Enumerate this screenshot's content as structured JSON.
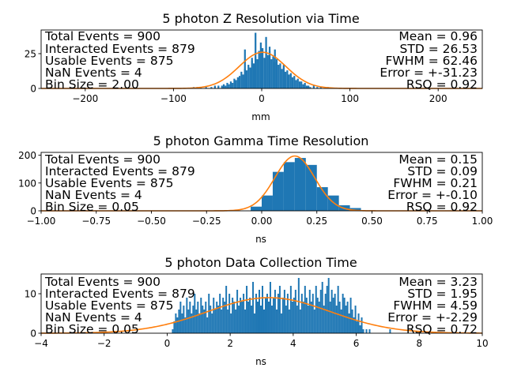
{
  "colors": {
    "bar": "#1f77b4",
    "fit": "#ff7f0e",
    "axis": "#000000",
    "background": "#ffffff"
  },
  "chart_data": [
    {
      "type": "bar",
      "title": "5 photon Z Resolution via Time",
      "xlabel": "mm",
      "ylabel": "",
      "xlim": [
        -250,
        250
      ],
      "ylim": [
        0,
        42
      ],
      "xticks": [
        -200,
        -100,
        0,
        100,
        200
      ],
      "xtick_labels": [
        "−200",
        "−100",
        "0",
        "100",
        "200"
      ],
      "yticks": [
        0,
        25
      ],
      "ytick_labels": [
        "0",
        "25"
      ],
      "bin_width": 2,
      "series": [
        {
          "kind": "histogram",
          "bins": [
            [
              -78,
              1
            ],
            [
              -74,
              1
            ],
            [
              -70,
              1
            ],
            [
              -64,
              1
            ],
            [
              -58,
              1
            ],
            [
              -54,
              2
            ],
            [
              -50,
              2
            ],
            [
              -46,
              2
            ],
            [
              -44,
              3
            ],
            [
              -42,
              2
            ],
            [
              -40,
              4
            ],
            [
              -38,
              3
            ],
            [
              -36,
              5
            ],
            [
              -34,
              4
            ],
            [
              -32,
              7
            ],
            [
              -30,
              6
            ],
            [
              -28,
              8
            ],
            [
              -26,
              9
            ],
            [
              -24,
              12
            ],
            [
              -22,
              10
            ],
            [
              -20,
              14
            ],
            [
              -18,
              13
            ],
            [
              -16,
              17
            ],
            [
              -14,
              15
            ],
            [
              -12,
              20
            ],
            [
              -10,
              18
            ],
            [
              -8,
              23
            ],
            [
              -6,
              21
            ],
            [
              -4,
              27
            ],
            [
              -2,
              25
            ],
            [
              0,
              29
            ],
            [
              2,
              22
            ],
            [
              4,
              26
            ],
            [
              6,
              24
            ],
            [
              8,
              27
            ],
            [
              10,
              21
            ],
            [
              12,
              23
            ],
            [
              14,
              19
            ],
            [
              16,
              21
            ],
            [
              18,
              17
            ],
            [
              20,
              18
            ],
            [
              22,
              14
            ],
            [
              24,
              16
            ],
            [
              26,
              12
            ],
            [
              28,
              13
            ],
            [
              30,
              10
            ],
            [
              32,
              11
            ],
            [
              34,
              8
            ],
            [
              36,
              9
            ],
            [
              38,
              6
            ],
            [
              40,
              7
            ],
            [
              42,
              5
            ],
            [
              44,
              5
            ],
            [
              46,
              3
            ],
            [
              48,
              4
            ],
            [
              50,
              2
            ],
            [
              52,
              2
            ],
            [
              54,
              1
            ],
            [
              58,
              2
            ],
            [
              62,
              1
            ],
            [
              66,
              1
            ],
            [
              74,
              1
            ],
            [
              -12,
              22
            ],
            [
              -8,
              40
            ],
            [
              4,
              37
            ],
            [
              -2,
              33
            ],
            [
              8,
              30
            ],
            [
              14,
              28
            ],
            [
              -20,
              28
            ],
            [
              24,
              17
            ]
          ]
        },
        {
          "kind": "gaussian_fit",
          "mean": 0.96,
          "std": 26.53,
          "amplitude": 26
        }
      ],
      "stats_left": [
        "Total Events = 900",
        "Interacted Events = 879",
        "Usable Events = 875",
        "NaN Events = 4",
        "Bin Size = 2.00"
      ],
      "stats_right": [
        "Mean = 0.96",
        "STD = 26.53",
        "FWHM = 62.46",
        "Error = +-31.23",
        "RSQ = 0.92"
      ]
    },
    {
      "type": "bar",
      "title": "5 photon Gamma Time Resolution",
      "xlabel": "ns",
      "ylabel": "",
      "xlim": [
        -1.0,
        1.0
      ],
      "ylim": [
        0,
        210
      ],
      "xticks": [
        -1.0,
        -0.75,
        -0.5,
        -0.25,
        0.0,
        0.25,
        0.5,
        0.75,
        1.0
      ],
      "xtick_labels": [
        "−1.00",
        "−0.75",
        "−0.50",
        "−0.25",
        "0.00",
        "0.25",
        "0.50",
        "0.75",
        "1.00"
      ],
      "yticks": [
        0,
        100,
        200
      ],
      "ytick_labels": [
        "0",
        "100",
        "200"
      ],
      "bin_width": 0.05,
      "series": [
        {
          "kind": "histogram",
          "bins": [
            [
              -0.05,
              15
            ],
            [
              0.0,
              55
            ],
            [
              0.05,
              140
            ],
            [
              0.1,
              175
            ],
            [
              0.15,
              190
            ],
            [
              0.2,
              165
            ],
            [
              0.25,
              85
            ],
            [
              0.3,
              55
            ],
            [
              0.35,
              20
            ],
            [
              0.4,
              10
            ]
          ]
        },
        {
          "kind": "gaussian_fit",
          "mean": 0.15,
          "std": 0.09,
          "amplitude": 197
        }
      ],
      "stats_left": [
        "Total Events = 900",
        "Interacted Events = 879",
        "Usable Events = 875",
        "NaN Events = 4",
        "Bin Size = 0.05"
      ],
      "stats_right": [
        "Mean = 0.15",
        "STD = 0.09",
        "FWHM = 0.21",
        "Error = +-0.10",
        "RSQ = 0.92"
      ]
    },
    {
      "type": "bar",
      "title": "5 photon Data Collection Time",
      "xlabel": "ns",
      "ylabel": "",
      "xlim": [
        -4,
        10
      ],
      "ylim": [
        0,
        15
      ],
      "xticks": [
        -4,
        -2,
        0,
        2,
        4,
        6,
        8,
        10
      ],
      "xtick_labels": [
        "−4",
        "−2",
        "0",
        "2",
        "4",
        "6",
        "8",
        "10"
      ],
      "yticks": [
        0,
        10
      ],
      "ytick_labels": [
        "0",
        "10"
      ],
      "bin_width": 0.05,
      "series": [
        {
          "kind": "histogram",
          "bins": [
            [
              0.15,
              1
            ],
            [
              0.2,
              3
            ],
            [
              0.25,
              5
            ],
            [
              0.3,
              4
            ],
            [
              0.35,
              6
            ],
            [
              0.4,
              8
            ],
            [
              0.45,
              5
            ],
            [
              0.5,
              7
            ],
            [
              0.55,
              4
            ],
            [
              0.6,
              9
            ],
            [
              0.65,
              6
            ],
            [
              0.7,
              8
            ],
            [
              0.75,
              5
            ],
            [
              0.8,
              7
            ],
            [
              0.85,
              10
            ],
            [
              0.9,
              6
            ],
            [
              0.95,
              8
            ],
            [
              1.0,
              5
            ],
            [
              1.05,
              9
            ],
            [
              1.1,
              7
            ],
            [
              1.15,
              6
            ],
            [
              1.2,
              8
            ],
            [
              1.25,
              4
            ],
            [
              1.3,
              10
            ],
            [
              1.35,
              7
            ],
            [
              1.4,
              5
            ],
            [
              1.45,
              9
            ],
            [
              1.5,
              6
            ],
            [
              1.55,
              8
            ],
            [
              1.6,
              7
            ],
            [
              1.65,
              10
            ],
            [
              1.7,
              6
            ],
            [
              1.75,
              9
            ],
            [
              1.8,
              8
            ],
            [
              1.85,
              12
            ],
            [
              1.9,
              6
            ],
            [
              1.95,
              10
            ],
            [
              2.0,
              5
            ],
            [
              2.05,
              9
            ],
            [
              2.1,
              8
            ],
            [
              2.15,
              6
            ],
            [
              2.2,
              11
            ],
            [
              2.25,
              7
            ],
            [
              2.3,
              9
            ],
            [
              2.35,
              8
            ],
            [
              2.4,
              10
            ],
            [
              2.45,
              6
            ],
            [
              2.5,
              12
            ],
            [
              2.55,
              8
            ],
            [
              2.6,
              9
            ],
            [
              2.65,
              7
            ],
            [
              2.7,
              13
            ],
            [
              2.75,
              5
            ],
            [
              2.8,
              10
            ],
            [
              2.85,
              8
            ],
            [
              2.9,
              11
            ],
            [
              2.95,
              7
            ],
            [
              3.0,
              12
            ],
            [
              3.05,
              6
            ],
            [
              3.1,
              9
            ],
            [
              3.15,
              10
            ],
            [
              3.2,
              8
            ],
            [
              3.25,
              13
            ],
            [
              3.3,
              7
            ],
            [
              3.35,
              9
            ],
            [
              3.4,
              11
            ],
            [
              3.45,
              6
            ],
            [
              3.5,
              10
            ],
            [
              3.55,
              12
            ],
            [
              3.6,
              5
            ],
            [
              3.65,
              9
            ],
            [
              3.7,
              11
            ],
            [
              3.75,
              7
            ],
            [
              3.8,
              10
            ],
            [
              3.85,
              6
            ],
            [
              3.9,
              12
            ],
            [
              3.95,
              8
            ],
            [
              4.0,
              9
            ],
            [
              4.05,
              11
            ],
            [
              4.1,
              7
            ],
            [
              4.15,
              14
            ],
            [
              4.2,
              6
            ],
            [
              4.25,
              10
            ],
            [
              4.3,
              8
            ],
            [
              4.35,
              12
            ],
            [
              4.4,
              9
            ],
            [
              4.45,
              7
            ],
            [
              4.5,
              11
            ],
            [
              4.55,
              8
            ],
            [
              4.6,
              10
            ],
            [
              4.65,
              6
            ],
            [
              4.7,
              12
            ],
            [
              4.75,
              9
            ],
            [
              4.8,
              8
            ],
            [
              4.85,
              11
            ],
            [
              4.9,
              13
            ],
            [
              4.95,
              7
            ],
            [
              5.0,
              10
            ],
            [
              5.05,
              12
            ],
            [
              5.1,
              14
            ],
            [
              5.15,
              8
            ],
            [
              5.2,
              11
            ],
            [
              5.25,
              9
            ],
            [
              5.3,
              10
            ],
            [
              5.35,
              7
            ],
            [
              5.4,
              12
            ],
            [
              5.45,
              8
            ],
            [
              5.5,
              6
            ],
            [
              5.55,
              10
            ],
            [
              5.6,
              9
            ],
            [
              5.65,
              7
            ],
            [
              5.7,
              8
            ],
            [
              5.75,
              5
            ],
            [
              5.8,
              9
            ],
            [
              5.85,
              6
            ],
            [
              5.9,
              4
            ],
            [
              5.95,
              7
            ],
            [
              6.0,
              3
            ],
            [
              6.05,
              5
            ],
            [
              6.1,
              2
            ],
            [
              6.15,
              4
            ],
            [
              6.2,
              1
            ],
            [
              6.3,
              1
            ],
            [
              6.4,
              1
            ],
            [
              7.05,
              1
            ]
          ]
        },
        {
          "kind": "gaussian_fit",
          "mean": 3.23,
          "std": 1.95,
          "amplitude": 9
        }
      ],
      "stats_left": [
        "Total Events = 900",
        "Interacted Events = 879",
        "Usable Events = 875",
        "NaN Events = 4",
        "Bin Size = 0.05"
      ],
      "stats_right": [
        "Mean = 3.23",
        "STD = 1.95",
        "FWHM = 4.59",
        "Error = +-2.29",
        "RSQ = 0.72"
      ]
    }
  ]
}
